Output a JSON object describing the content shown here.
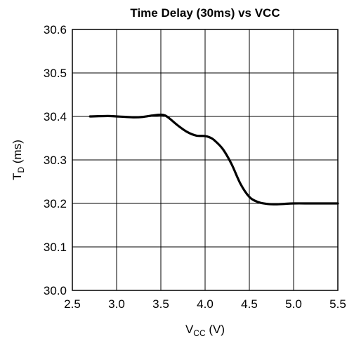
{
  "chart_data": {
    "type": "line",
    "title": "Time Delay (30ms) vs VCC",
    "xlabel": {
      "main": "V",
      "sub": "CC",
      "tail": " (V)"
    },
    "ylabel": {
      "main": "T",
      "sub": "D",
      "tail": " (ms)"
    },
    "xlim": [
      2.5,
      5.5
    ],
    "ylim": [
      30.0,
      30.6
    ],
    "x_ticks": [
      "2.5",
      "3.0",
      "3.5",
      "4.0",
      "4.5",
      "5.0",
      "5.5"
    ],
    "y_ticks": [
      "30.0",
      "30.1",
      "30.2",
      "30.3",
      "30.4",
      "30.5",
      "30.6"
    ],
    "grid": true,
    "series": [
      {
        "x": [
          2.7,
          2.9,
          3.0,
          3.1,
          3.2,
          3.3,
          3.4,
          3.5,
          3.55,
          3.6,
          3.7,
          3.8,
          3.9,
          4.0,
          4.05,
          4.1,
          4.2,
          4.3,
          4.4,
          4.5,
          4.6,
          4.7,
          4.8,
          4.9,
          5.0,
          5.2,
          5.4,
          5.5
        ],
        "y": [
          30.4,
          30.401,
          30.4,
          30.399,
          30.398,
          30.399,
          30.402,
          30.404,
          30.402,
          30.395,
          30.378,
          30.364,
          30.356,
          30.355,
          30.352,
          30.346,
          30.325,
          30.29,
          30.245,
          30.215,
          30.203,
          30.199,
          30.198,
          30.199,
          30.2,
          30.2,
          30.2,
          30.2
        ]
      }
    ],
    "line_color": "#000000"
  }
}
